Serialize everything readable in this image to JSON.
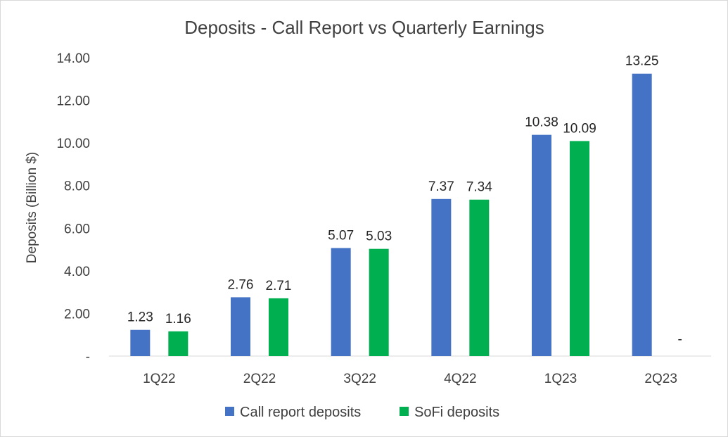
{
  "chart_data": {
    "type": "bar",
    "title": "Deposits - Call Report vs Quarterly Earnings",
    "xlabel": "",
    "ylabel": "Deposits (Billion $)",
    "ylim": [
      0,
      14
    ],
    "ytick_values": [
      0,
      2,
      4,
      6,
      8,
      10,
      12,
      14
    ],
    "ytick_labels": [
      "-",
      "2.00",
      "4.00",
      "6.00",
      "8.00",
      "10.00",
      "12.00",
      "14.00"
    ],
    "categories": [
      "1Q22",
      "2Q22",
      "3Q22",
      "4Q22",
      "1Q23",
      "2Q23"
    ],
    "series": [
      {
        "name": "Call report deposits",
        "color": "#4472C4",
        "values": [
          1.23,
          2.76,
          5.07,
          7.37,
          10.38,
          13.25
        ],
        "labels": [
          "1.23",
          "2.76",
          "5.07",
          "7.37",
          "10.38",
          "13.25"
        ]
      },
      {
        "name": "SoFi deposits",
        "color": "#00B050",
        "values": [
          1.16,
          2.71,
          5.03,
          7.34,
          10.09,
          0
        ],
        "labels": [
          "1.16",
          "2.71",
          "5.03",
          "7.34",
          "10.09",
          "-"
        ]
      }
    ],
    "grid": false,
    "legend": "bottom"
  }
}
